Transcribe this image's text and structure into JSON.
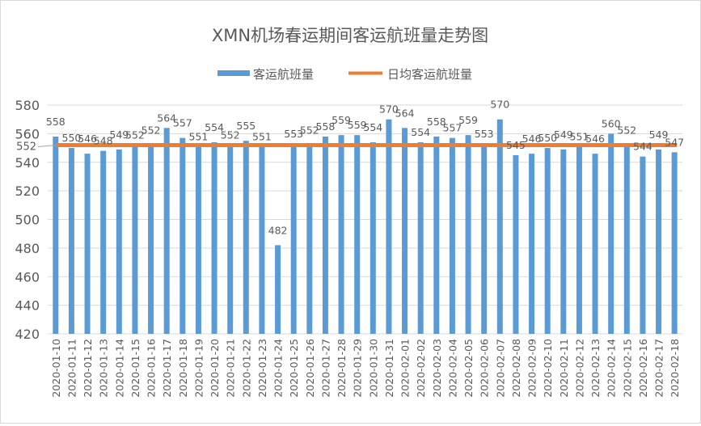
{
  "chart_data": {
    "type": "bar",
    "title": "XMN机场春运期间客运航班量走势图",
    "xlabel": "",
    "ylabel": "",
    "ylim": [
      420,
      580
    ],
    "yticks": [
      420,
      440,
      460,
      480,
      500,
      520,
      540,
      560,
      580
    ],
    "grid": true,
    "legend_position": "top-center",
    "categories": [
      "2020-01-10",
      "2020-01-11",
      "2020-01-12",
      "2020-01-13",
      "2020-01-14",
      "2020-01-15",
      "2020-01-16",
      "2020-01-17",
      "2020-01-18",
      "2020-01-19",
      "2020-01-20",
      "2020-01-21",
      "2020-01-22",
      "2020-01-23",
      "2020-01-24",
      "2020-01-25",
      "2020-01-26",
      "2020-01-27",
      "2020-01-28",
      "2020-01-29",
      "2020-01-30",
      "2020-01-31",
      "2020-02-01",
      "2020-02-02",
      "2020-02-03",
      "2020-02-04",
      "2020-02-05",
      "2020-02-06",
      "2020-02-07",
      "2020-02-08",
      "2020-02-09",
      "2020-02-10",
      "2020-02-11",
      "2020-02-12",
      "2020-02-13",
      "2020-02-14",
      "2020-02-15",
      "2020-02-16",
      "2020-02-17",
      "2020-02-18"
    ],
    "series": [
      {
        "name": "客运航班量",
        "type": "bar",
        "color": "#5b9bd5",
        "values": [
          558,
          550,
          546,
          548,
          549,
          552,
          552,
          564,
          557,
          551,
          554,
          552,
          555,
          551,
          482,
          553,
          552,
          558,
          559,
          559,
          554,
          570,
          564,
          554,
          558,
          557,
          559,
          553,
          570,
          545,
          546,
          550,
          549,
          551,
          546,
          560,
          552,
          544,
          549,
          547
        ]
      },
      {
        "name": "日均客运航班量",
        "type": "line",
        "color": "#ed7d31",
        "value": 552,
        "label": "552"
      }
    ]
  }
}
